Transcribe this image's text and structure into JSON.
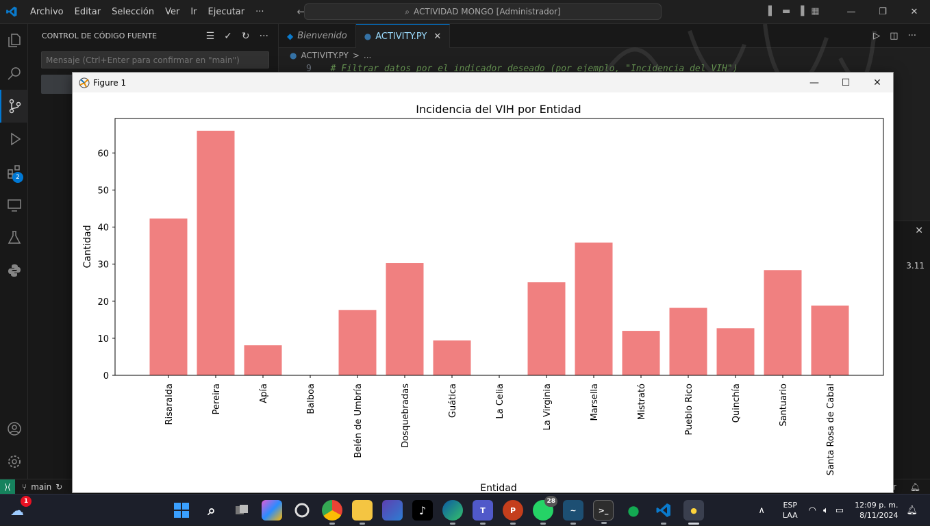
{
  "vscode": {
    "menu": [
      "Archivo",
      "Editar",
      "Selección",
      "Ver",
      "Ir",
      "Ejecutar",
      "···"
    ],
    "command_center": "ACTIVIDAD MONGO [Administrador]",
    "sidebar_title": "CONTROL DE CÓDIGO FUENTE",
    "commit_placeholder": "Mensaje (Ctrl+Enter para confirmar en \"main\")",
    "extensions_badge": "2",
    "tabs": [
      {
        "label": "Bienvenido",
        "icon": "vscode-icon",
        "active": false
      },
      {
        "label": "ACTIVITY.PY",
        "icon": "python-icon",
        "active": true,
        "close": "✕"
      }
    ],
    "breadcrumb": {
      "file": "ACTIVITY.PY",
      "sep": ">",
      "rest": "..."
    },
    "code": {
      "line_no": "9",
      "text": "# Filtrar datos por el indicador deseado (por ejemplo, \"Incidencia del VIH\")"
    },
    "panel_version": "3.11",
    "status": {
      "branch": "main",
      "right_partial": "er"
    }
  },
  "figure": {
    "window_title": "Figure 1",
    "controls": {
      "minimize": "—",
      "maximize": "☐",
      "close": "✕"
    }
  },
  "chart_data": {
    "type": "bar",
    "title": "Incidencia del VIH por Entidad",
    "xlabel": "Entidad",
    "ylabel": "Cantidad",
    "categories": [
      "Risaralda",
      "Pereira",
      "Apía",
      "Balboa",
      "Belén de Umbría",
      "Dosquebradas",
      "Guática",
      "La Celia",
      "La Virginia",
      "Marsella",
      "Mistrató",
      "Pueblo Rico",
      "Quinchía",
      "Santuario",
      "Santa Rosa de Cabal"
    ],
    "values": [
      42.3,
      66.0,
      8.1,
      0,
      17.6,
      30.3,
      9.4,
      0,
      25.1,
      35.8,
      12.0,
      18.2,
      12.7,
      28.4,
      18.8
    ],
    "yticks": [
      0,
      10,
      20,
      30,
      40,
      50,
      60
    ],
    "ylim": [
      0,
      69.3
    ],
    "bar_color": "#f08080",
    "grid": false,
    "legend": "none"
  },
  "taskbar": {
    "weather_badge": "1",
    "whatsapp_badge": "28",
    "apps": [
      "start-icon",
      "search-icon",
      "task-view-icon",
      "copilot-icon",
      "cortana-icon",
      "chrome-icon",
      "file-explorer-icon",
      "visual-studio-icon",
      "tiktok-icon",
      "edge-icon",
      "teams-icon",
      "powerpoint-icon",
      "whatsapp-icon",
      "mysql-workbench-icon",
      "terminal-icon",
      "mongodb-compass-icon",
      "vscode-icon",
      "python-icon"
    ],
    "language": {
      "lang": "ESP",
      "layout": "LAA"
    },
    "time": "12:09 p. m.",
    "date": "8/11/2024"
  }
}
